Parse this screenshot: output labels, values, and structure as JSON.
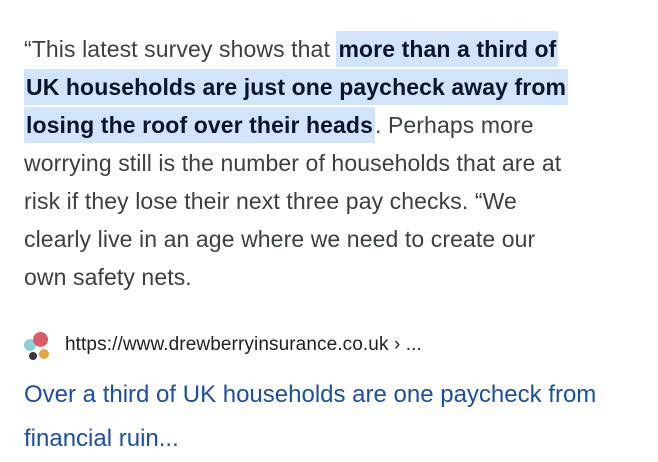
{
  "snippet": {
    "quote_pre": "“This latest survey shows that ",
    "quote_highlight": "more than a third of UK households are just one paycheck away from losing the roof over their heads",
    "quote_post": ". Perhaps more worrying still is the number of households that are at risk if they lose their next three pay checks. “We clearly live in an age where we need to create our own safety nets."
  },
  "source": {
    "url": "https://www.drewberryinsurance.co.uk › ...",
    "favicon_icon": "colored-dots-favicon"
  },
  "result": {
    "title": "Over a third of UK households are one paycheck from financial ruin..."
  },
  "colors": {
    "page-bg": "#ffffff",
    "body-text": "#3b4043",
    "highlight-bg": "#d2e3fc",
    "highlight-text": "#0a142e",
    "url-text": "#202124",
    "title-link": "#1a4fa5",
    "favicon-red": "#d95b65",
    "favicon-teal": "#8ecfd8",
    "favicon-dark": "#3a3537",
    "favicon-orange": "#e9a63f"
  }
}
